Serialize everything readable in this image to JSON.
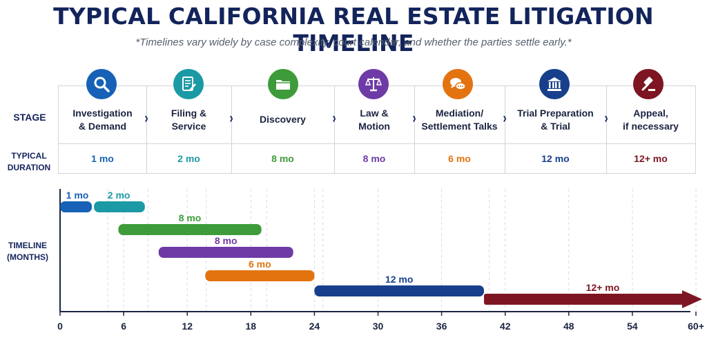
{
  "title": "TYPICAL CALIFORNIA REAL ESTATE LITIGATION TIMELINE",
  "subtitle": "*Timelines vary widely by case complexity, court calendar, and whether the parties settle early.*",
  "row_labels": {
    "stage": "STAGE",
    "duration_line1": "TYPICAL",
    "duration_line2": "DURATION",
    "timeline_line1": "TIMELINE",
    "timeline_line2": "(MONTHS)"
  },
  "stages": [
    {
      "name": "Investigation\n& Demand",
      "duration": "1 mo",
      "color": "#1762b6",
      "icon": "magnifier-icon"
    },
    {
      "name": "Filing &\nService",
      "duration": "2 mo",
      "color": "#1b9aa5",
      "icon": "document-pen-icon"
    },
    {
      "name": "Discovery",
      "duration": "8 mo",
      "color": "#3d9b3a",
      "icon": "folder-icon"
    },
    {
      "name": "Law &\nMotion",
      "duration": "8 mo",
      "color": "#6d3aa6",
      "icon": "scales-icon"
    },
    {
      "name": "Mediation/\nSettlement Talks",
      "duration": "6 mo",
      "color": "#e3730f",
      "icon": "chat-bubbles-icon"
    },
    {
      "name": "Trial Preparation\n& Trial",
      "duration": "12 mo",
      "color": "#173f8c",
      "icon": "courthouse-icon"
    },
    {
      "name": "Appeal,\nif necessary",
      "duration": "12+ mo",
      "color": "#7d1622",
      "icon": "gavel-icon"
    }
  ],
  "chart_data": {
    "type": "gantt",
    "xlabel": "",
    "ylabel": "TIMELINE (MONTHS)",
    "xlim": [
      0,
      62
    ],
    "x_ticks": [
      "0",
      "6",
      "12",
      "18",
      "24",
      "30",
      "36",
      "42",
      "48",
      "54",
      "60+"
    ],
    "bars": [
      {
        "label": "1 mo",
        "start": 0,
        "end": 3,
        "color": "#1762b6"
      },
      {
        "label": "2 mo",
        "start": 3.2,
        "end": 8,
        "color": "#1b9aa5"
      },
      {
        "label": "8 mo",
        "start": 5.5,
        "end": 19,
        "color": "#3d9b3a"
      },
      {
        "label": "8 mo",
        "start": 9.3,
        "end": 22,
        "color": "#6d3aa6"
      },
      {
        "label": "6 mo",
        "start": 13.7,
        "end": 24,
        "color": "#e3730f"
      },
      {
        "label": "12 mo",
        "start": 24,
        "end": 40,
        "color": "#173f8c"
      },
      {
        "label": "12+ mo",
        "start": 40,
        "end": 62,
        "color": "#7d1622",
        "open_ended": true
      }
    ],
    "milestone_gridlines": [
      4.5,
      8.3,
      13.8,
      19.5,
      24.8,
      40.5
    ]
  }
}
